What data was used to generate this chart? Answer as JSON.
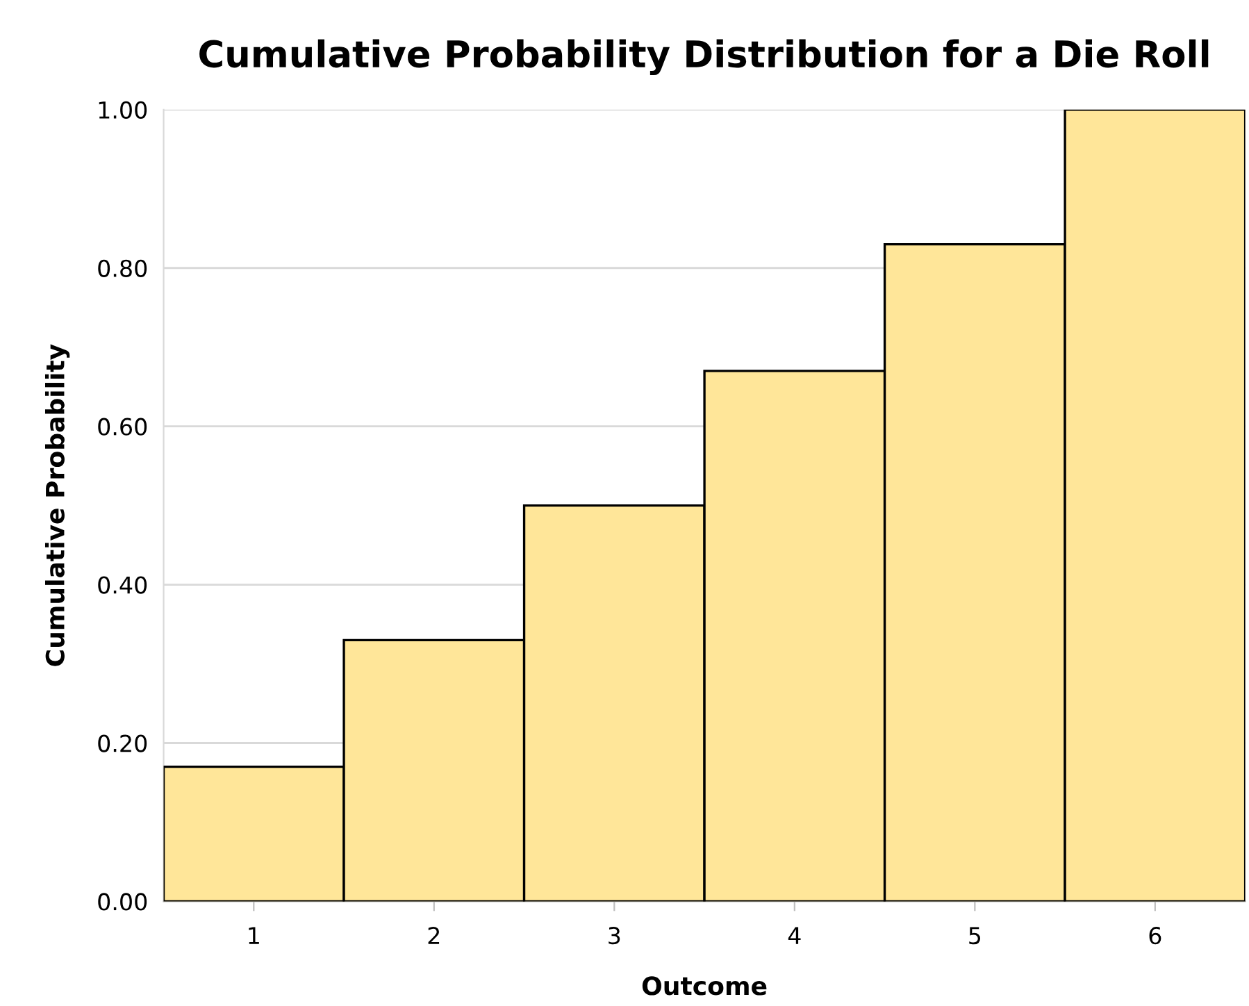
{
  "chart_data": {
    "type": "bar",
    "title": "Cumulative Probability Distribution for a Die Roll",
    "xlabel": "Outcome",
    "ylabel": "Cumulative Probability",
    "categories": [
      "1",
      "2",
      "3",
      "4",
      "5",
      "6"
    ],
    "values": [
      0.17,
      0.33,
      0.5,
      0.67,
      0.83,
      1.0
    ],
    "color": "#ffe699",
    "ylim": [
      0,
      1
    ],
    "yticks": [
      {
        "value": 0,
        "label": "0.00"
      },
      {
        "value": 0.2,
        "label": "0.20"
      },
      {
        "value": 0.4,
        "label": "0.40"
      },
      {
        "value": 0.6,
        "label": "0.60"
      },
      {
        "value": 0.8,
        "label": "0.80"
      },
      {
        "value": 1,
        "label": "1.00"
      }
    ],
    "grid": "y"
  }
}
